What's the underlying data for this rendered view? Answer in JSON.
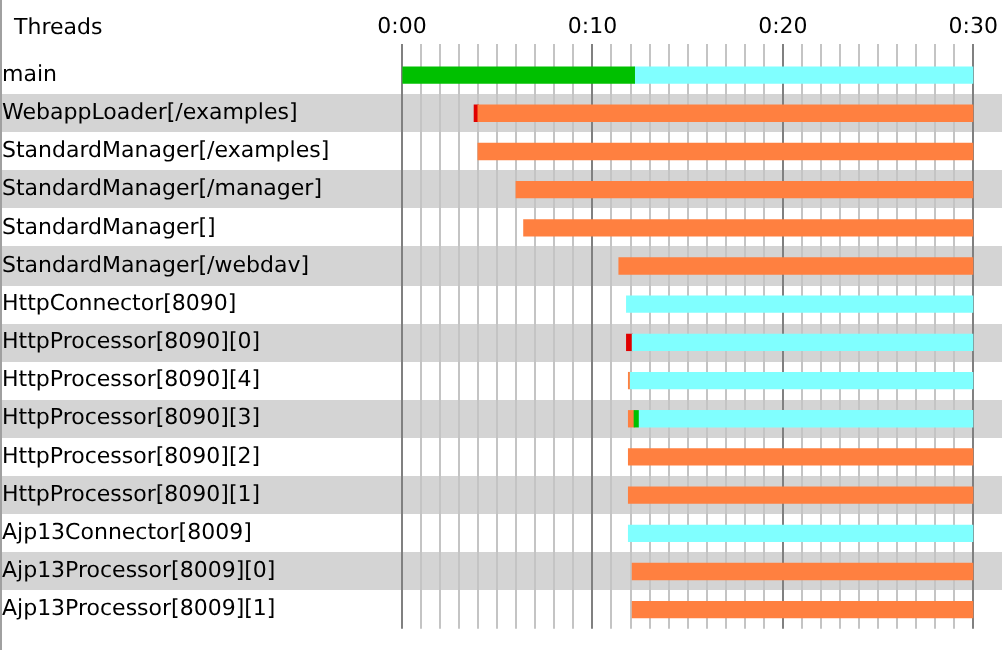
{
  "chart_data": {
    "type": "bar",
    "orientation": "horizontal",
    "ylabel": "Threads",
    "categories": [
      "main",
      "WebappLoader[/examples]",
      "StandardManager[/examples]",
      "StandardManager[/manager]",
      "StandardManager[]",
      "StandardManager[/webdav]",
      "HttpConnector[8090]",
      "HttpProcessor[8090][0]",
      "HttpProcessor[8090][4]",
      "HttpProcessor[8090][3]",
      "HttpProcessor[8090][2]",
      "HttpProcessor[8090][1]",
      "Ajp13Connector[8009]",
      "Ajp13Processor[8009][0]",
      "Ajp13Processor[8009][1]"
    ],
    "series": [
      {
        "color": "#00c000",
        "base": [
          0,
          null,
          null,
          null,
          null,
          null,
          null,
          null,
          null,
          12.2,
          null,
          null,
          null,
          null,
          null
        ],
        "values": [
          12.2,
          null,
          null,
          null,
          null,
          null,
          null,
          null,
          null,
          0.2,
          null,
          null,
          null,
          null,
          null
        ]
      },
      {
        "color": "#80ffff",
        "base": [
          12.2,
          null,
          null,
          null,
          null,
          null,
          11.8,
          12.1,
          12.0,
          12.4,
          null,
          null,
          11.9,
          null,
          null
        ],
        "values": [
          17.8,
          null,
          null,
          null,
          null,
          null,
          18.2,
          17.9,
          18.0,
          17.6,
          null,
          null,
          18.1,
          null,
          null
        ]
      },
      {
        "color": "#ff8040",
        "base": [
          null,
          4.0,
          4.0,
          6.0,
          6.4,
          11.4,
          null,
          null,
          11.9,
          11.9,
          11.9,
          11.9,
          null,
          12.1,
          12.1
        ],
        "values": [
          null,
          26,
          26,
          24,
          23.6,
          18.6,
          null,
          null,
          0.1,
          0.3,
          18.1,
          18.1,
          null,
          17.9,
          17.9
        ]
      },
      {
        "color": "#e00000",
        "base": [
          null,
          3.8,
          null,
          null,
          null,
          null,
          null,
          11.8,
          null,
          null,
          null,
          null,
          null,
          null,
          null
        ],
        "values": [
          null,
          0.2,
          null,
          null,
          null,
          null,
          null,
          0.3,
          null,
          null,
          null,
          null,
          null,
          null,
          null
        ]
      }
    ],
    "xlim": [
      0,
      30
    ],
    "xticks": [
      {
        "value": 0,
        "label": "0:00"
      },
      {
        "value": 1,
        "label": null
      },
      {
        "value": 2,
        "label": null
      },
      {
        "value": 3,
        "label": null
      },
      {
        "value": 4,
        "label": null
      },
      {
        "value": 5,
        "label": null
      },
      {
        "value": 6,
        "label": null
      },
      {
        "value": 7,
        "label": null
      },
      {
        "value": 8,
        "label": null
      },
      {
        "value": 9,
        "label": null
      },
      {
        "value": 10,
        "label": "0:10"
      },
      {
        "value": 11,
        "label": null
      },
      {
        "value": 12,
        "label": null
      },
      {
        "value": 13,
        "label": null
      },
      {
        "value": 14,
        "label": null
      },
      {
        "value": 15,
        "label": null
      },
      {
        "value": 16,
        "label": null
      },
      {
        "value": 17,
        "label": null
      },
      {
        "value": 18,
        "label": null
      },
      {
        "value": 19,
        "label": null
      },
      {
        "value": 20,
        "label": "0:20"
      },
      {
        "value": 21,
        "label": null
      },
      {
        "value": 22,
        "label": null
      },
      {
        "value": 23,
        "label": null
      },
      {
        "value": 24,
        "label": null
      },
      {
        "value": 25,
        "label": null
      },
      {
        "value": 26,
        "label": null
      },
      {
        "value": 27,
        "label": null
      },
      {
        "value": 28,
        "label": null
      },
      {
        "value": 29,
        "label": null
      },
      {
        "value": 30,
        "label": "0:30"
      }
    ],
    "grid": "x",
    "legend": false
  }
}
